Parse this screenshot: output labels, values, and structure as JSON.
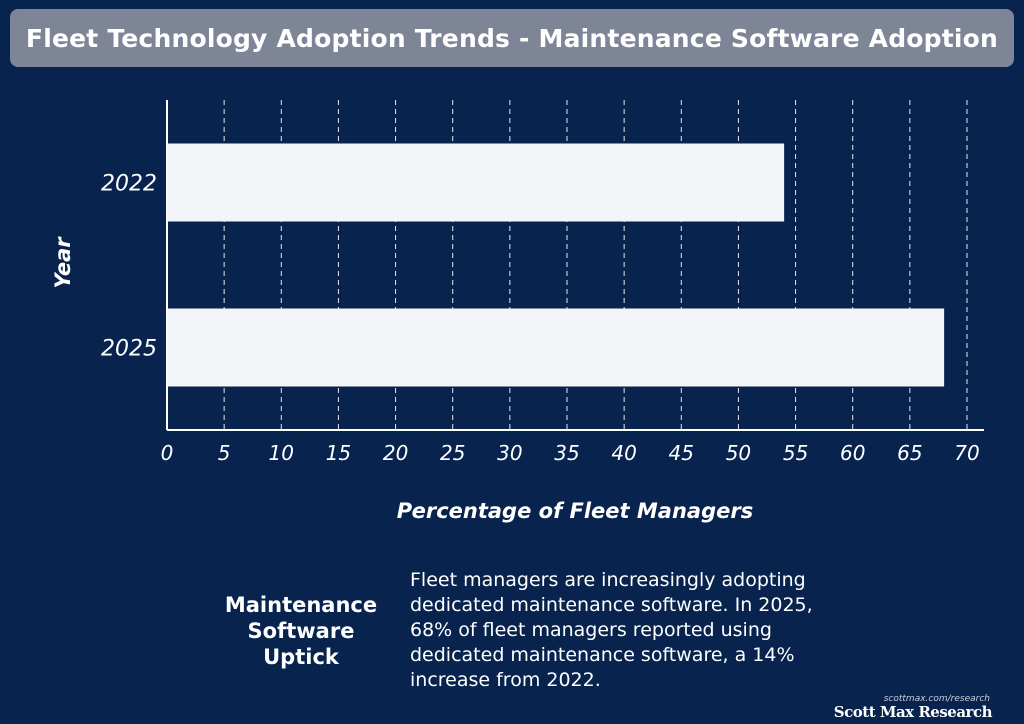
{
  "header": {
    "title": "Fleet Technology Adoption Trends - Maintenance Software Adoption"
  },
  "chart_data": {
    "type": "bar",
    "orientation": "horizontal",
    "categories": [
      "2022",
      "2025"
    ],
    "values": [
      54,
      68
    ],
    "xlabel": "Percentage of Fleet Managers",
    "ylabel": "Year",
    "xlim": [
      0,
      70
    ],
    "xticks": [
      "0",
      "5",
      "10",
      "15",
      "20",
      "25",
      "30",
      "35",
      "40",
      "45",
      "50",
      "55",
      "60",
      "65",
      "70"
    ],
    "grid": "vertical dashed",
    "bar_color": "#f4f5f8",
    "grid_color": "#ffffff"
  },
  "callout": {
    "heading": "Maintenance Software Uptick",
    "body": "Fleet managers are increasingly adopting dedicated maintenance software. In 2025, 68% of fleet managers reported using dedicated maintenance software, a 14% increase from 2022."
  },
  "footer": {
    "url": "scottmax.com/research",
    "brand": "Scott Max Research"
  }
}
